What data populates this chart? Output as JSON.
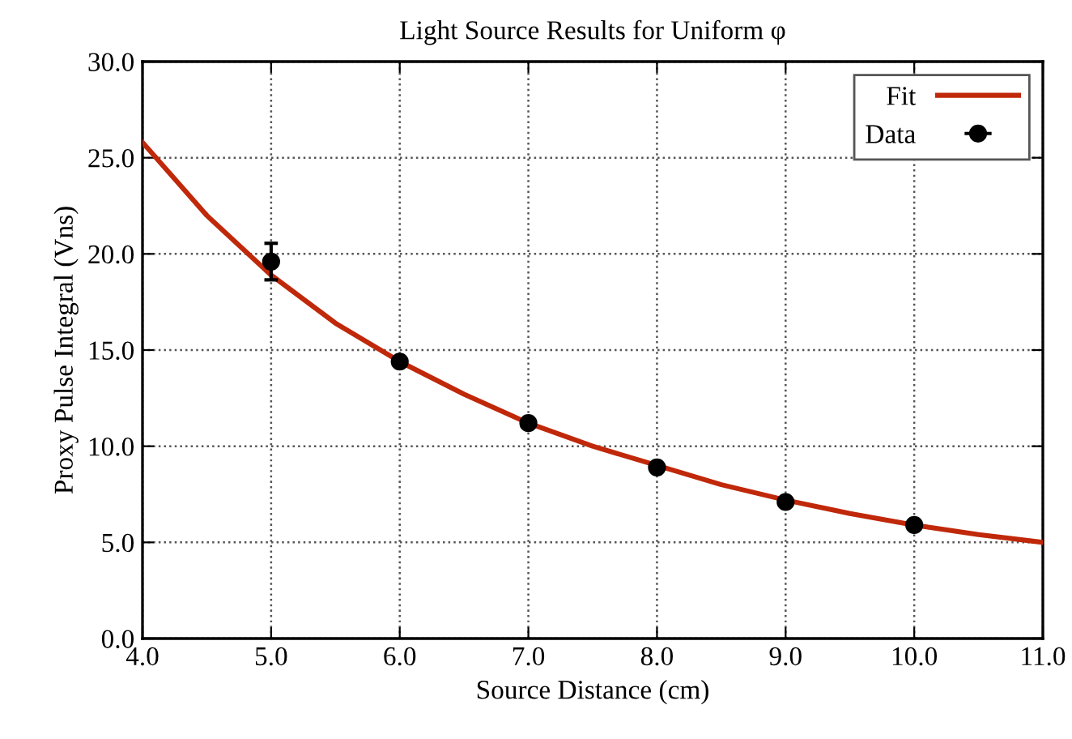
{
  "chart_data": {
    "type": "scatter",
    "title": "Light Source Results for Uniform φ",
    "xlabel": "Source Distance (cm)",
    "ylabel": "Proxy Pulse Integral (Vns)",
    "xlim": [
      4,
      11
    ],
    "ylim": [
      0,
      30
    ],
    "xticks": [
      {
        "value": 4,
        "label": "4.0"
      },
      {
        "value": 5,
        "label": "5.0"
      },
      {
        "value": 6,
        "label": "6.0"
      },
      {
        "value": 7,
        "label": "7.0"
      },
      {
        "value": 8,
        "label": "8.0"
      },
      {
        "value": 9,
        "label": "9.0"
      },
      {
        "value": 10,
        "label": "10.0"
      },
      {
        "value": 11,
        "label": "11.0"
      }
    ],
    "yticks": [
      {
        "value": 0,
        "label": "0.0"
      },
      {
        "value": 5,
        "label": "5.0"
      },
      {
        "value": 10,
        "label": "10.0"
      },
      {
        "value": 15,
        "label": "15.0"
      },
      {
        "value": 20,
        "label": "20.0"
      },
      {
        "value": 25,
        "label": "25.0"
      },
      {
        "value": 30,
        "label": "30.0"
      }
    ],
    "grid": true,
    "legend": "top right",
    "series": [
      {
        "name": "Fit",
        "type": "line",
        "color": "#c0280a",
        "line_style": "solid",
        "marker": "none",
        "x": [
          4,
          4.5,
          5,
          5.5,
          6,
          6.5,
          7,
          7.5,
          8,
          8.5,
          9,
          9.5,
          10,
          10.5,
          11
        ],
        "values": [
          25.8,
          22.0,
          18.9,
          16.4,
          14.4,
          12.7,
          11.2,
          10.0,
          9.0,
          8.0,
          7.2,
          6.5,
          5.9,
          5.4,
          5.0
        ]
      },
      {
        "name": "Data",
        "color": "#000000",
        "marker": "circle",
        "x": [
          5,
          6,
          7,
          8,
          9,
          10
        ],
        "values": [
          19.6,
          14.4,
          11.2,
          8.9,
          7.1,
          5.9
        ],
        "errors": [
          0.95,
          null,
          null,
          null,
          null,
          null
        ]
      }
    ]
  }
}
